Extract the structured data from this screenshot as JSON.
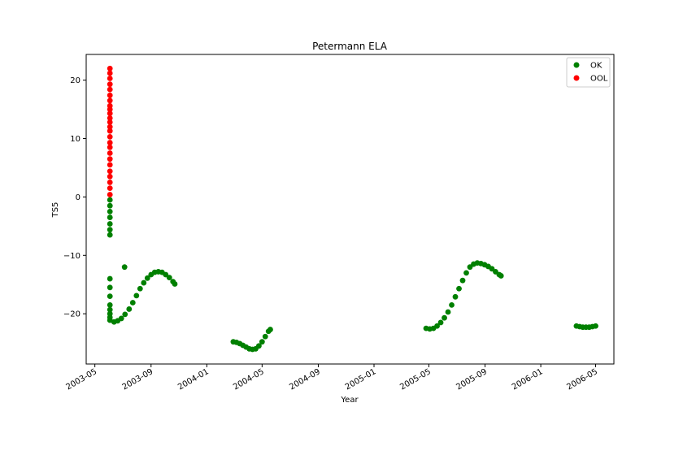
{
  "chart_data": {
    "type": "scatter",
    "title": "Petermann ELA",
    "xlabel": "Year",
    "ylabel": "TS5",
    "x_type": "date",
    "xlim": [
      "2003-04-12",
      "2006-06-10"
    ],
    "ylim": [
      -28.6,
      24.4
    ],
    "x_ticks": [
      "2003-05-01",
      "2003-09-01",
      "2004-01-01",
      "2004-05-01",
      "2004-09-01",
      "2005-01-01",
      "2005-05-01",
      "2005-09-01",
      "2006-01-01",
      "2006-05-01"
    ],
    "x_tick_labels": [
      "2003-05",
      "2003-09",
      "2004-01",
      "2004-05",
      "2004-09",
      "2005-01",
      "2005-05",
      "2005-09",
      "2006-01",
      "2006-05"
    ],
    "y_ticks": [
      20,
      10,
      0,
      -10,
      -20
    ],
    "y_tick_labels": [
      "20",
      "10",
      "0",
      "−10",
      "−20"
    ],
    "grid": false,
    "legend_position": "top-right",
    "series": [
      {
        "name": "OK",
        "color": "#008000",
        "points": [
          {
            "x": "2003-06-03",
            "y": -0.5
          },
          {
            "x": "2003-06-03",
            "y": -1.5
          },
          {
            "x": "2003-06-03",
            "y": -2.5
          },
          {
            "x": "2003-06-03",
            "y": -3.5
          },
          {
            "x": "2003-06-03",
            "y": -4.6
          },
          {
            "x": "2003-06-03",
            "y": -5.6
          },
          {
            "x": "2003-06-03",
            "y": -6.5
          },
          {
            "x": "2003-06-03",
            "y": -14.0
          },
          {
            "x": "2003-06-03",
            "y": -15.5
          },
          {
            "x": "2003-06-03",
            "y": -17.0
          },
          {
            "x": "2003-06-03",
            "y": -18.5
          },
          {
            "x": "2003-06-03",
            "y": -19.3
          },
          {
            "x": "2003-06-03",
            "y": -20.0
          },
          {
            "x": "2003-06-03",
            "y": -20.6
          },
          {
            "x": "2003-06-03",
            "y": -21.1
          },
          {
            "x": "2003-06-12",
            "y": -21.4
          },
          {
            "x": "2003-06-20",
            "y": -21.2
          },
          {
            "x": "2003-06-28",
            "y": -20.8
          },
          {
            "x": "2003-07-06",
            "y": -20.1
          },
          {
            "x": "2003-07-15",
            "y": -19.2
          },
          {
            "x": "2003-07-23",
            "y": -18.1
          },
          {
            "x": "2003-07-31",
            "y": -16.9
          },
          {
            "x": "2003-08-08",
            "y": -15.7
          },
          {
            "x": "2003-08-16",
            "y": -14.7
          },
          {
            "x": "2003-08-24",
            "y": -13.9
          },
          {
            "x": "2003-09-01",
            "y": -13.3
          },
          {
            "x": "2003-09-09",
            "y": -12.9
          },
          {
            "x": "2003-09-17",
            "y": -12.8
          },
          {
            "x": "2003-09-25",
            "y": -12.9
          },
          {
            "x": "2003-10-03",
            "y": -13.3
          },
          {
            "x": "2003-10-11",
            "y": -13.8
          },
          {
            "x": "2003-10-19",
            "y": -14.5
          },
          {
            "x": "2003-10-23",
            "y": -14.9
          },
          {
            "x": "2003-07-05",
            "y": -12.0
          },
          {
            "x": "2004-02-28",
            "y": -24.8
          },
          {
            "x": "2004-03-06",
            "y": -24.9
          },
          {
            "x": "2004-03-13",
            "y": -25.1
          },
          {
            "x": "2004-03-20",
            "y": -25.4
          },
          {
            "x": "2004-03-27",
            "y": -25.7
          },
          {
            "x": "2004-04-03",
            "y": -26.0
          },
          {
            "x": "2004-04-10",
            "y": -26.1
          },
          {
            "x": "2004-04-17",
            "y": -26.0
          },
          {
            "x": "2004-04-24",
            "y": -25.5
          },
          {
            "x": "2004-05-01",
            "y": -24.8
          },
          {
            "x": "2004-05-08",
            "y": -23.9
          },
          {
            "x": "2004-05-15",
            "y": -23.0
          },
          {
            "x": "2004-05-19",
            "y": -22.7
          },
          {
            "x": "2005-04-25",
            "y": -22.5
          },
          {
            "x": "2005-05-03",
            "y": -22.6
          },
          {
            "x": "2005-05-11",
            "y": -22.5
          },
          {
            "x": "2005-05-19",
            "y": -22.1
          },
          {
            "x": "2005-05-27",
            "y": -21.5
          },
          {
            "x": "2005-06-04",
            "y": -20.7
          },
          {
            "x": "2005-06-12",
            "y": -19.7
          },
          {
            "x": "2005-06-20",
            "y": -18.5
          },
          {
            "x": "2005-06-28",
            "y": -17.1
          },
          {
            "x": "2005-07-06",
            "y": -15.7
          },
          {
            "x": "2005-07-14",
            "y": -14.3
          },
          {
            "x": "2005-07-22",
            "y": -13.0
          },
          {
            "x": "2005-07-30",
            "y": -12.0
          },
          {
            "x": "2005-08-07",
            "y": -11.5
          },
          {
            "x": "2005-08-15",
            "y": -11.3
          },
          {
            "x": "2005-08-23",
            "y": -11.4
          },
          {
            "x": "2005-08-31",
            "y": -11.6
          },
          {
            "x": "2005-09-08",
            "y": -11.9
          },
          {
            "x": "2005-09-16",
            "y": -12.3
          },
          {
            "x": "2005-09-24",
            "y": -12.8
          },
          {
            "x": "2005-10-02",
            "y": -13.3
          },
          {
            "x": "2005-10-06",
            "y": -13.5
          },
          {
            "x": "2006-03-20",
            "y": -22.1
          },
          {
            "x": "2006-03-27",
            "y": -22.2
          },
          {
            "x": "2006-04-03",
            "y": -22.3
          },
          {
            "x": "2006-04-10",
            "y": -22.3
          },
          {
            "x": "2006-04-17",
            "y": -22.3
          },
          {
            "x": "2006-04-24",
            "y": -22.2
          },
          {
            "x": "2006-05-01",
            "y": -22.1
          }
        ]
      },
      {
        "name": "OOL",
        "color": "#ff0000",
        "points": [
          {
            "x": "2003-06-03",
            "y": 0.4
          },
          {
            "x": "2003-06-03",
            "y": 1.5
          },
          {
            "x": "2003-06-03",
            "y": 2.5
          },
          {
            "x": "2003-06-03",
            "y": 3.5
          },
          {
            "x": "2003-06-03",
            "y": 4.4
          },
          {
            "x": "2003-06-03",
            "y": 5.5
          },
          {
            "x": "2003-06-03",
            "y": 6.5
          },
          {
            "x": "2003-06-03",
            "y": 7.5
          },
          {
            "x": "2003-06-03",
            "y": 8.5
          },
          {
            "x": "2003-06-03",
            "y": 9.3
          },
          {
            "x": "2003-06-03",
            "y": 10.3
          },
          {
            "x": "2003-06-03",
            "y": 11.3
          },
          {
            "x": "2003-06-03",
            "y": 12.0
          },
          {
            "x": "2003-06-03",
            "y": 12.8
          },
          {
            "x": "2003-06-03",
            "y": 13.5
          },
          {
            "x": "2003-06-03",
            "y": 14.3
          },
          {
            "x": "2003-06-03",
            "y": 15.0
          },
          {
            "x": "2003-06-03",
            "y": 15.6
          },
          {
            "x": "2003-06-03",
            "y": 16.5
          },
          {
            "x": "2003-06-03",
            "y": 17.4
          },
          {
            "x": "2003-06-03",
            "y": 18.4
          },
          {
            "x": "2003-06-03",
            "y": 19.3
          },
          {
            "x": "2003-06-03",
            "y": 20.3
          },
          {
            "x": "2003-06-03",
            "y": 21.2
          },
          {
            "x": "2003-06-03",
            "y": 22.0
          }
        ]
      }
    ]
  }
}
